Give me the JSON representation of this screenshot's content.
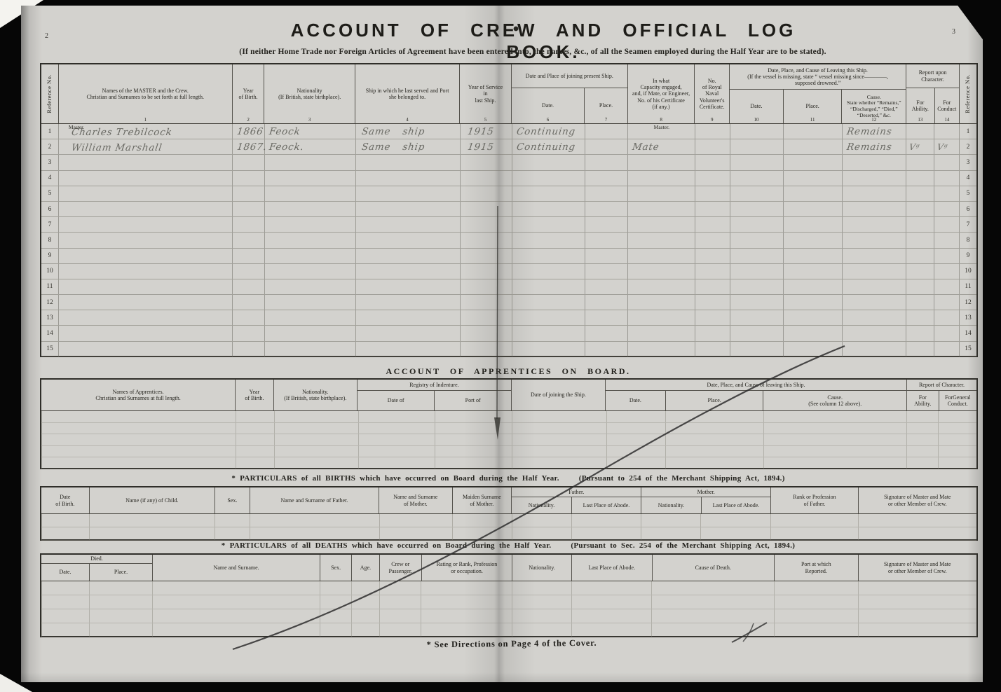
{
  "colors": {
    "paper": "#d3d2ce",
    "ink": "#26251f",
    "pen_stroke": "#2e2e2e",
    "handwriting": "#6a6a64"
  },
  "page": {
    "left_page_number": "2",
    "right_page_number": "3",
    "title": "ACCOUNT  OF  CREW AND  OFFICIAL  LOG  BOOK.",
    "subtitle": "(If neither Home Trade nor Foreign Articles of Agreement have been entered into, the names, &c., of all the Seamen employed during the Half Year are to be stated).",
    "footer_note": "* See Directions on Page 4 of the Cover."
  },
  "crew": {
    "ref_label": "Reference No.",
    "col_names": {
      "l": "Names of the MASTER and the Crew.\nChristian and Surnames to be set forth at full length.",
      "n": "1"
    },
    "col_yob": {
      "l": "Year\nof Birth.",
      "n": "2"
    },
    "col_nat": {
      "l": "Nationality\n(If British, state birthplace).",
      "n": "3"
    },
    "col_ship": {
      "l": "Ship in which he last served and Port\nshe belonged to.",
      "n": "4"
    },
    "col_yos": {
      "l": "Year of Service\nin\nlast Ship.",
      "n": "5"
    },
    "grp_joining": "Date and Place of joining present Ship.",
    "col_jdate": {
      "l": "Date.",
      "n": "6"
    },
    "col_jplace": {
      "l": "Place.",
      "n": "7"
    },
    "col_capacity": {
      "l": "In what\nCapacity engaged,\nand, if Mate, or Engineer,\nNo. of his Certificate\n(if any.)",
      "n": "8"
    },
    "col_rnv": {
      "l": "No.\nof Royal\nNaval\nVolunteer's\nCertificate.",
      "n": "9"
    },
    "grp_leaving": "Date, Place, and Cause of Leaving this Ship.\n(If the vessel is missing, state “ vessel missing since————,\nsupposed drowned.”",
    "col_ldate": {
      "l": "Date.",
      "n": "10"
    },
    "col_lplace": {
      "l": "Place.",
      "n": "11"
    },
    "col_cause": {
      "l": "Cause.\nState whether “Remains,”\n“Discharged,” “Died,”\n“Deserted,” &c.",
      "n": "12"
    },
    "grp_report": "Report upon\nCharacter.",
    "col_ability": {
      "l": "For\nAbility.",
      "n": "13"
    },
    "col_conduct": {
      "l": "For\nConduct",
      "n": "14"
    },
    "rows": [
      {
        "ref": "1",
        "name_tag": "Master.",
        "name": "Charles Trebilcock",
        "yob": "1866",
        "nat": "Feock",
        "ship": "Same ship",
        "yos": "1915",
        "jdate": "Continuing",
        "cap": "Master.",
        "cap_printed": true,
        "cause": "Remains"
      },
      {
        "ref": "2",
        "name": "William Marshall",
        "yob": "1867.",
        "nat": "Feock.",
        "ship": "Same ship",
        "yos": "1915",
        "jdate": "Continuing",
        "cap": "Mate",
        "cause": "Remains",
        "ab": "Vᵍ",
        "cd": "Vᵍ"
      },
      {
        "ref": "3"
      },
      {
        "ref": "4"
      },
      {
        "ref": "5"
      },
      {
        "ref": "6"
      },
      {
        "ref": "7"
      },
      {
        "ref": "8"
      },
      {
        "ref": "9"
      },
      {
        "ref": "10"
      },
      {
        "ref": "11"
      },
      {
        "ref": "12"
      },
      {
        "ref": "13"
      },
      {
        "ref": "14"
      },
      {
        "ref": "15"
      }
    ]
  },
  "apprentices": {
    "title": "ACCOUNT  OF  APPRENTICES  ON  BOARD.",
    "col_names": "Names of Apprentices.\nChristian and Surnames at full length.",
    "col_yob": "Year\nof Birth.",
    "col_nat": "Nationality.\n(If British, state birthplace).",
    "grp_registry": "Registry of Indenture.",
    "col_rdate": "Date of",
    "col_rport": "Port of",
    "col_join": "Date of joining the Ship.",
    "grp_leaving": "Date, Place, and Cause of leaving this Ship.",
    "col_ldate": "Date.",
    "col_lplace": "Place.",
    "col_cause": "Cause.\n(See column 12 above).",
    "grp_report": "Report of Character.",
    "col_ability": "For\nAbility.",
    "col_conduct": "ForGeneral\nConduct."
  },
  "births": {
    "title": "* PARTICULARS  of  all  BIRTHS  which  have  occurred  on  Board  during  the  Half Year.",
    "pursuant": "(Pursuant to 254 of the Merchant Shipping Act, 1894.)",
    "col_date": "Date\nof Birth.",
    "col_child": "Name (if any) of Child.",
    "col_sex": "Sex.",
    "col_father": "Name and Surname of Father.",
    "col_mother": "Name and Surname\nof Mother.",
    "col_maiden": "Maiden Surname\nof Mother.",
    "grp_father": "Father.",
    "grp_mother": "Mother.",
    "col_f_nat": "Nationality.",
    "col_f_abode": "Last Place of Abode.",
    "col_m_nat": "Nationality.",
    "col_m_abode": "Last Place of Abode.",
    "col_rank": "Rank or Profession\nof Father.",
    "col_sig": "Signature of Master and Mate\nor other Member of Crew."
  },
  "deaths": {
    "title": "* PARTICULARS  of  all  DEATHS  which  have  occurred  on  Board  during  the  Half Year.",
    "pursuant": "(Pursuant to Sec. 254 of the Merchant Shipping Act, 1894.)",
    "grp_died": "Died.",
    "col_date": "Date.",
    "col_place": "Place.",
    "col_name": "Name and Surname.",
    "col_sex": "Sex.",
    "col_age": "Age.",
    "col_crew": "Crew or\nPassenger.",
    "col_rating": "Rating or Rank, Profession\nor occupation.",
    "col_nat": "Nationality.",
    "col_abode": "Last Place of Abode.",
    "col_cause": "Cause of Death.",
    "col_port": "Port at which\nReported.",
    "col_sig": "Signature of Master and Mate\nor other Member of Crew."
  }
}
